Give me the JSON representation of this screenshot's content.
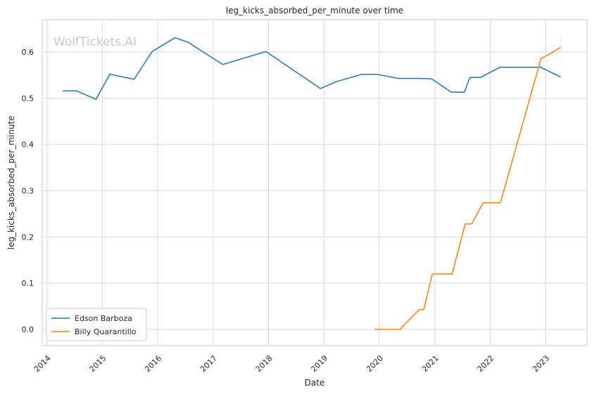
{
  "chart_data": {
    "type": "line",
    "title": "leg_kicks_absorbed_per_minute over time",
    "xlabel": "Date",
    "ylabel": "leg_kicks_absorbed_per_minute",
    "watermark": "WolfTickets.AI",
    "xlim": [
      "2013-12-01",
      "2023-10-01"
    ],
    "ylim": [
      -0.035,
      0.67
    ],
    "xticks": [
      "2014",
      "2015",
      "2016",
      "2017",
      "2018",
      "2019",
      "2020",
      "2021",
      "2022",
      "2023"
    ],
    "yticks": [
      "0.0",
      "0.1",
      "0.2",
      "0.3",
      "0.4",
      "0.5",
      "0.6"
    ],
    "grid": true,
    "legend_position": "lower-left",
    "colors": {
      "Edson Barboza": "#1f77b4",
      "Billy Quarantillo": "#ff7f0e"
    },
    "series": [
      {
        "name": "Edson Barboza",
        "color": "#1f77b4",
        "points": [
          [
            "2014-04-15",
            0.516
          ],
          [
            "2014-07-15",
            0.516
          ],
          [
            "2014-11-20",
            0.498
          ],
          [
            "2015-02-20",
            0.552
          ],
          [
            "2015-07-30",
            0.541
          ],
          [
            "2015-11-25",
            0.601
          ],
          [
            "2016-04-25",
            0.631
          ],
          [
            "2016-07-20",
            0.621
          ],
          [
            "2017-03-05",
            0.573
          ],
          [
            "2017-12-15",
            0.601
          ],
          [
            "2018-12-10",
            0.521
          ],
          [
            "2019-03-25",
            0.536
          ],
          [
            "2019-09-10",
            0.552
          ],
          [
            "2019-12-15",
            0.552
          ],
          [
            "2020-05-05",
            0.543
          ],
          [
            "2020-09-10",
            0.543
          ],
          [
            "2020-12-10",
            0.542
          ],
          [
            "2021-04-20",
            0.513
          ],
          [
            "2021-07-15",
            0.513
          ],
          [
            "2021-08-20",
            0.545
          ],
          [
            "2021-10-30",
            0.545
          ],
          [
            "2022-03-05",
            0.567
          ],
          [
            "2022-11-30",
            0.567
          ],
          [
            "2023-04-10",
            0.546
          ]
        ]
      },
      {
        "name": "Billy Quarantillo",
        "color": "#ff7f0e",
        "points": [
          [
            "2019-12-01",
            0.0
          ],
          [
            "2020-05-15",
            0.0
          ],
          [
            "2020-09-20",
            0.043
          ],
          [
            "2020-10-20",
            0.043
          ],
          [
            "2020-12-15",
            0.12
          ],
          [
            "2021-04-25",
            0.12
          ],
          [
            "2021-07-20",
            0.228
          ],
          [
            "2021-09-01",
            0.228
          ],
          [
            "2021-11-15",
            0.274
          ],
          [
            "2022-03-10",
            0.274
          ],
          [
            "2022-12-01",
            0.585
          ],
          [
            "2023-04-10",
            0.61
          ]
        ]
      }
    ]
  }
}
